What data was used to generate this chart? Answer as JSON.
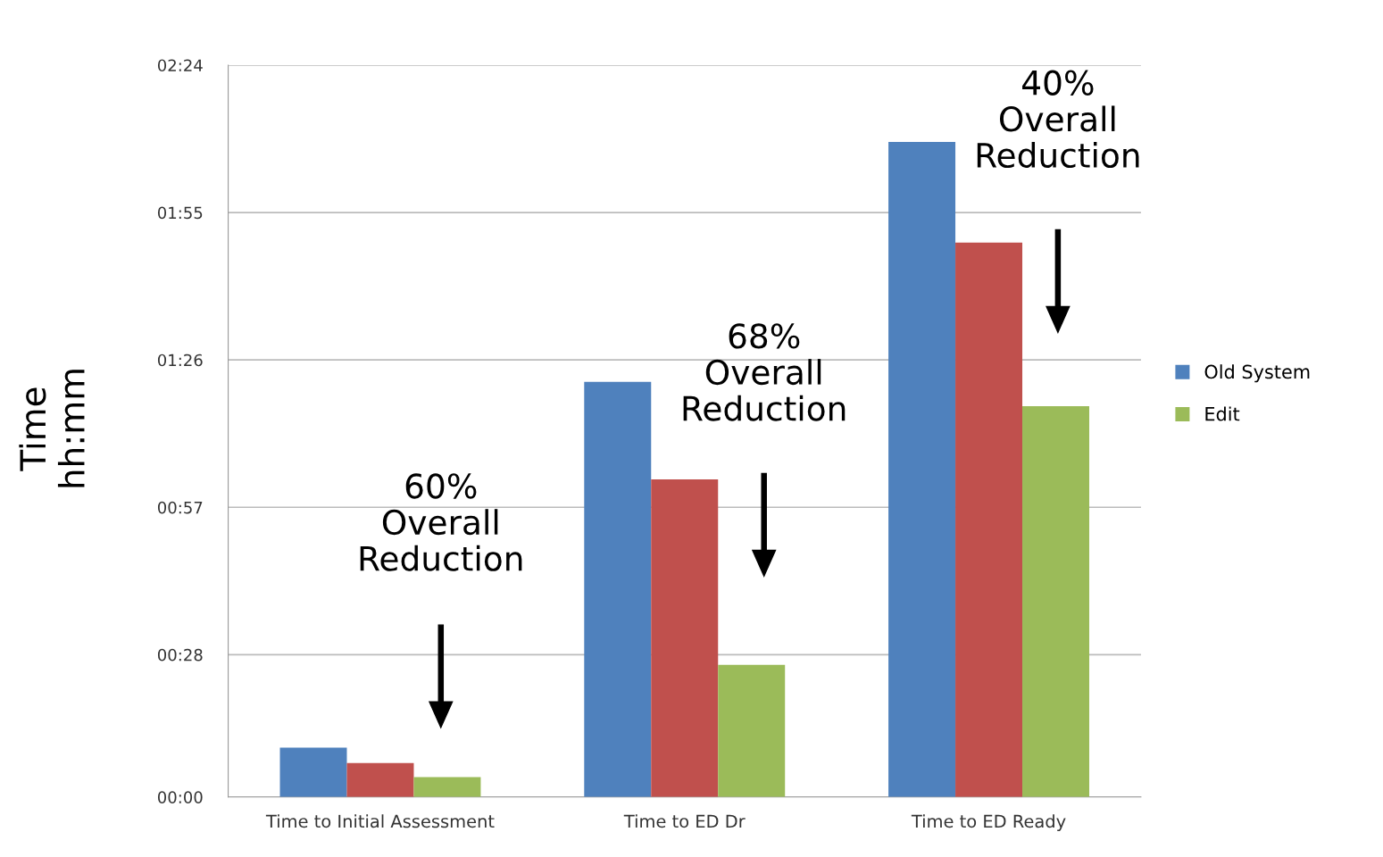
{
  "chart_data": {
    "type": "bar",
    "ylabel": "Time\nhh:mm",
    "categories": [
      "Time to Initial Assessment",
      "Time to ED Dr",
      "Time to ED Ready"
    ],
    "series": [
      {
        "name": "Old System",
        "color": "#4f81bd",
        "values": [
          9.7,
          81.7,
          128.9
        ]
      },
      {
        "name": null,
        "color": "#c0504d",
        "values": [
          6.7,
          62.5,
          109.1
        ]
      },
      {
        "name": "Edit",
        "color": "#9bbb59",
        "values": [
          3.9,
          26.0,
          76.9
        ]
      }
    ],
    "ylim": [
      0,
      144
    ],
    "yticks": [
      {
        "value": 0,
        "label": "00:00"
      },
      {
        "value": 28,
        "label": "00:28"
      },
      {
        "value": 57,
        "label": "00:57"
      },
      {
        "value": 86,
        "label": "01:26"
      },
      {
        "value": 115,
        "label": "01:55"
      },
      {
        "value": 144,
        "label": "02:24"
      }
    ],
    "grid": "y",
    "legend": "right",
    "annotations": [
      "60%\nOverall\nReduction",
      "68%\nOverall\nReduction",
      "40%\nOverall\nReduction"
    ]
  }
}
